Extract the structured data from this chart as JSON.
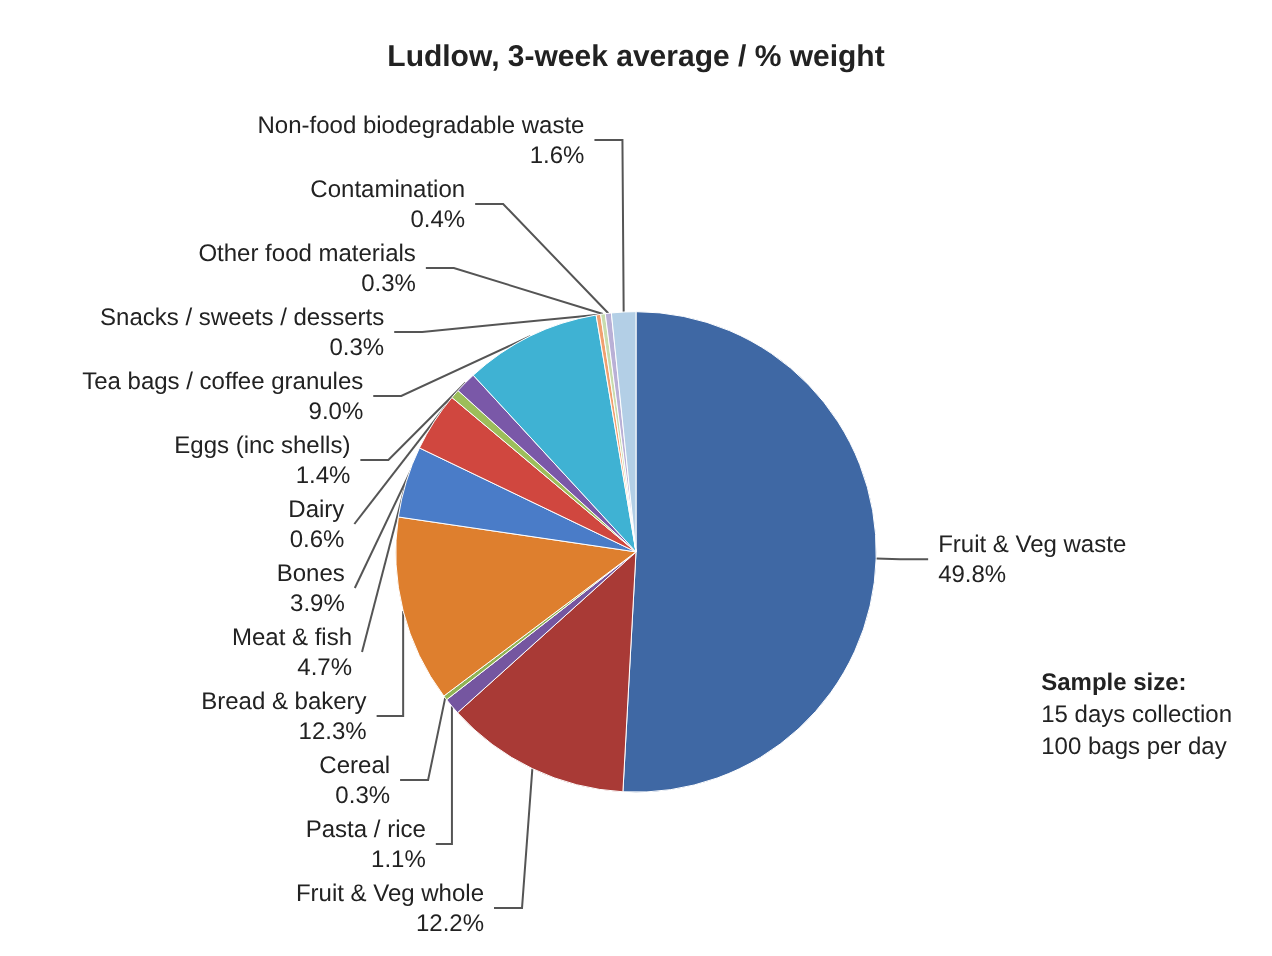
{
  "chart_data": {
    "type": "pie",
    "title": "Ludlow, 3-week average / % weight",
    "categories": [
      "Fruit & Veg waste",
      "Fruit & Veg whole",
      "Pasta / rice",
      "Cereal",
      "Bread & bakery",
      "Meat & fish",
      "Bones",
      "Dairy",
      "Eggs (inc shells)",
      "Tea bags / coffee granules",
      "Snacks / sweets / desserts",
      "Other food materials",
      "Contamination",
      "Non-food biodegradable waste"
    ],
    "values": [
      49.8,
      12.2,
      1.1,
      0.3,
      12.3,
      4.7,
      3.9,
      0.6,
      1.4,
      9.0,
      0.3,
      0.3,
      0.4,
      1.6
    ],
    "colors": [
      "#3f68a4",
      "#a93a36",
      "#7556a0",
      "#8fb454",
      "#de7f2e",
      "#4a7cc8",
      "#d0473f",
      "#9cbe5a",
      "#7a58a8",
      "#3fb2d3",
      "#f0a070",
      "#c8dcae",
      "#b9b0d6",
      "#b3cfe6"
    ],
    "value_labels": [
      "49.8%",
      "12.2%",
      "1.1%",
      "0.3%",
      "12.3%",
      "4.7%",
      "3.9%",
      "0.6%",
      "1.4%",
      "9.0%",
      "0.3%",
      "0.3%",
      "0.4%",
      "1.6%"
    ],
    "legend": false,
    "annotations": [
      "Sample size:\n15 days collection\n100 bags per day"
    ]
  }
}
